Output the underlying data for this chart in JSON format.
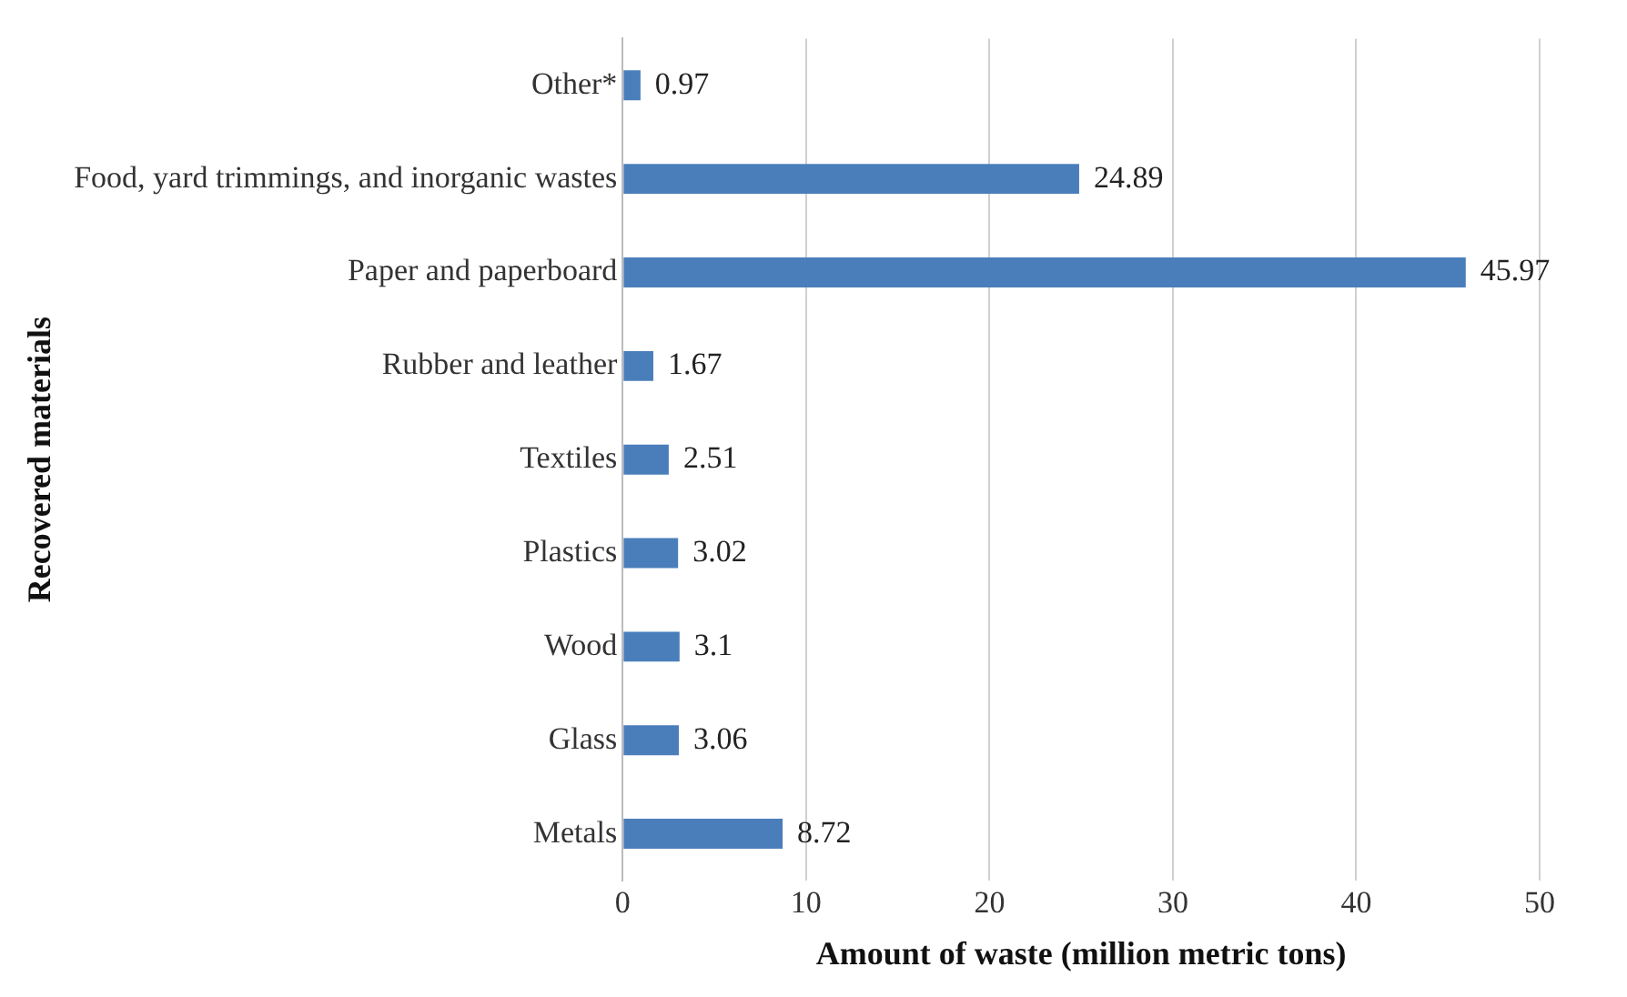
{
  "chart_data": {
    "type": "bar",
    "orientation": "horizontal",
    "xlabel": "Amount of waste (million metric tons)",
    "ylabel": "Recovered materials",
    "categories": [
      "Other*",
      "Food, yard trimmings, and inorganic wastes",
      "Paper and paperboard",
      "Rubber and leather",
      "Textiles",
      "Plastics",
      "Wood",
      "Glass",
      "Metals"
    ],
    "values": [
      0.97,
      24.89,
      45.97,
      1.67,
      2.51,
      3.02,
      3.1,
      3.06,
      8.72
    ],
    "color": "#4a7ebb",
    "xlim": [
      0,
      50
    ],
    "xticks": [
      0,
      10,
      20,
      30,
      40,
      50
    ],
    "grid": "x",
    "data_labels": true,
    "legend": false
  }
}
